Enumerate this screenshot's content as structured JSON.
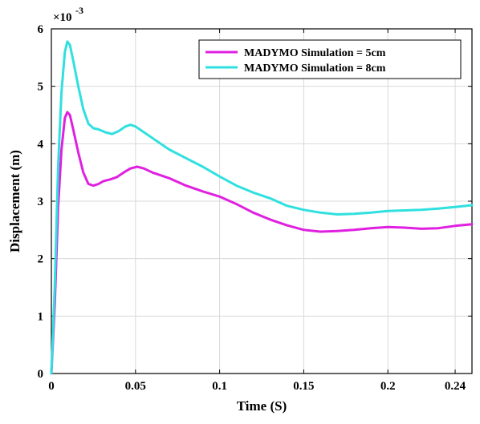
{
  "chart_data": {
    "type": "line",
    "xlabel": "Time (S)",
    "ylabel": "Displacement (m)",
    "y_exponent_label": "×10",
    "y_exponent_power": "-3",
    "xlim": [
      0,
      0.25
    ],
    "ylim": [
      0,
      6
    ],
    "x_ticks": [
      0,
      0.05,
      0.1,
      0.15,
      0.2,
      0.24
    ],
    "x_tick_labels": [
      "0",
      "0.05",
      "0.1",
      "0.15",
      "0.2",
      "0.24"
    ],
    "y_ticks": [
      0,
      1,
      2,
      3,
      4,
      5,
      6
    ],
    "y_tick_labels": [
      "0",
      "1",
      "2",
      "3",
      "4",
      "5",
      "6"
    ],
    "grid": true,
    "legend_position": "top-right",
    "series": [
      {
        "name": "MADYMO Simulation = 5cm",
        "color": "#e020e0",
        "points": [
          [
            0,
            0
          ],
          [
            0.002,
            1.2
          ],
          [
            0.004,
            2.9
          ],
          [
            0.006,
            3.9
          ],
          [
            0.008,
            4.45
          ],
          [
            0.0095,
            4.55
          ],
          [
            0.011,
            4.5
          ],
          [
            0.013,
            4.25
          ],
          [
            0.016,
            3.85
          ],
          [
            0.019,
            3.5
          ],
          [
            0.022,
            3.3
          ],
          [
            0.025,
            3.27
          ],
          [
            0.028,
            3.3
          ],
          [
            0.031,
            3.35
          ],
          [
            0.035,
            3.38
          ],
          [
            0.039,
            3.42
          ],
          [
            0.043,
            3.5
          ],
          [
            0.047,
            3.57
          ],
          [
            0.051,
            3.6
          ],
          [
            0.055,
            3.57
          ],
          [
            0.06,
            3.5
          ],
          [
            0.07,
            3.4
          ],
          [
            0.08,
            3.27
          ],
          [
            0.09,
            3.17
          ],
          [
            0.1,
            3.08
          ],
          [
            0.11,
            2.95
          ],
          [
            0.12,
            2.8
          ],
          [
            0.13,
            2.68
          ],
          [
            0.14,
            2.58
          ],
          [
            0.15,
            2.5
          ],
          [
            0.16,
            2.47
          ],
          [
            0.17,
            2.48
          ],
          [
            0.18,
            2.5
          ],
          [
            0.19,
            2.53
          ],
          [
            0.2,
            2.55
          ],
          [
            0.21,
            2.54
          ],
          [
            0.22,
            2.52
          ],
          [
            0.23,
            2.53
          ],
          [
            0.24,
            2.57
          ],
          [
            0.25,
            2.6
          ]
        ]
      },
      {
        "name": "MADYMO Simulation = 8cm",
        "color": "#30e0e0",
        "points": [
          [
            0,
            0
          ],
          [
            0.002,
            1.5
          ],
          [
            0.004,
            3.6
          ],
          [
            0.006,
            4.9
          ],
          [
            0.008,
            5.6
          ],
          [
            0.0095,
            5.78
          ],
          [
            0.011,
            5.72
          ],
          [
            0.013,
            5.45
          ],
          [
            0.016,
            5.0
          ],
          [
            0.019,
            4.6
          ],
          [
            0.022,
            4.35
          ],
          [
            0.025,
            4.27
          ],
          [
            0.028,
            4.25
          ],
          [
            0.032,
            4.2
          ],
          [
            0.036,
            4.17
          ],
          [
            0.04,
            4.22
          ],
          [
            0.044,
            4.3
          ],
          [
            0.047,
            4.33
          ],
          [
            0.05,
            4.3
          ],
          [
            0.055,
            4.2
          ],
          [
            0.06,
            4.1
          ],
          [
            0.07,
            3.9
          ],
          [
            0.08,
            3.75
          ],
          [
            0.09,
            3.6
          ],
          [
            0.1,
            3.43
          ],
          [
            0.11,
            3.27
          ],
          [
            0.12,
            3.15
          ],
          [
            0.13,
            3.05
          ],
          [
            0.14,
            2.92
          ],
          [
            0.15,
            2.85
          ],
          [
            0.16,
            2.8
          ],
          [
            0.17,
            2.77
          ],
          [
            0.18,
            2.78
          ],
          [
            0.19,
            2.8
          ],
          [
            0.2,
            2.83
          ],
          [
            0.21,
            2.84
          ],
          [
            0.22,
            2.85
          ],
          [
            0.23,
            2.87
          ],
          [
            0.24,
            2.9
          ],
          [
            0.25,
            2.93
          ]
        ]
      }
    ]
  }
}
